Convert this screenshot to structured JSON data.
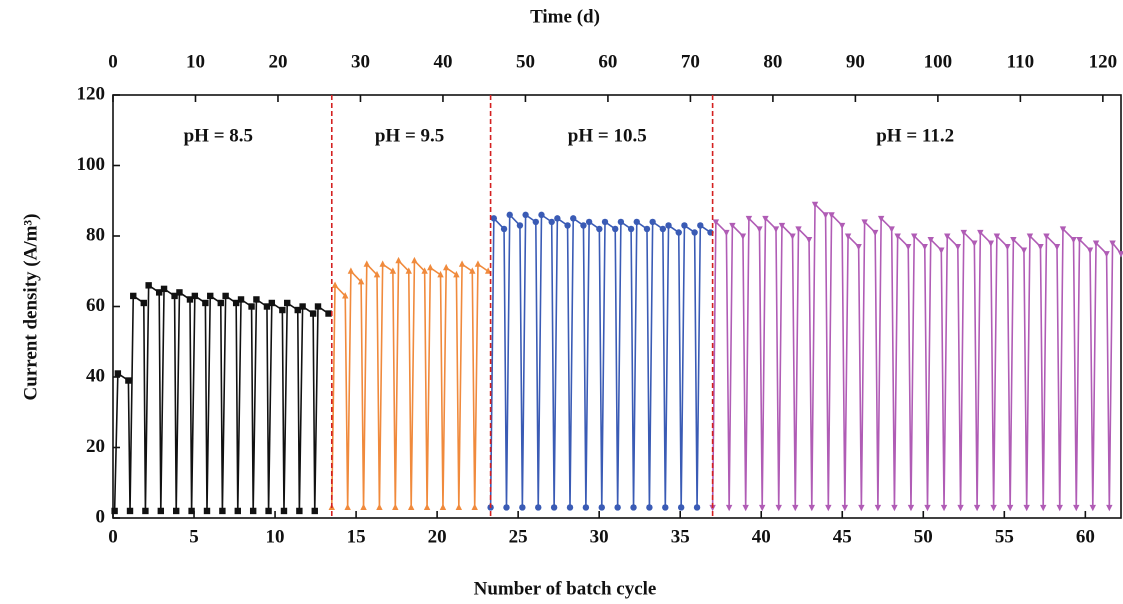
{
  "chart_data": {
    "type": "line",
    "x_label": "Number of batch cycle",
    "x2_label": "Time (d)",
    "y_label": "Current density (A/m³)",
    "xlim": [
      0,
      62.2
    ],
    "xticks": [
      0,
      5,
      10,
      15,
      20,
      25,
      30,
      35,
      40,
      45,
      50,
      55,
      60
    ],
    "x2lim": [
      0,
      122.2
    ],
    "x2ticks": [
      0,
      10,
      20,
      30,
      40,
      50,
      60,
      70,
      80,
      90,
      100,
      110,
      120
    ],
    "ylim": [
      0,
      120
    ],
    "yticks": [
      0,
      20,
      40,
      60,
      80,
      100,
      120
    ],
    "divider_color": "#d42020",
    "dividers": [
      13.5,
      23.3,
      37
    ],
    "annotations": [
      {
        "text": "pH = 8.5",
        "x": 6.5,
        "y": 108
      },
      {
        "text": "pH = 9.5",
        "x": 18.3,
        "y": 108
      },
      {
        "text": "pH = 10.5",
        "x": 30.5,
        "y": 108
      },
      {
        "text": "pH = 11.2",
        "x": 49.5,
        "y": 108
      }
    ],
    "series": [
      {
        "color": "#111111",
        "marker": "square",
        "x": [
          0.1,
          0.3,
          0.95,
          1.05,
          1.25,
          1.9,
          2.0,
          2.2,
          2.85,
          2.95,
          3.15,
          3.8,
          3.9,
          4.1,
          4.75,
          4.85,
          5.05,
          5.7,
          5.8,
          6.0,
          6.65,
          6.75,
          6.95,
          7.6,
          7.7,
          7.9,
          8.55,
          8.65,
          8.85,
          9.5,
          9.6,
          9.8,
          10.45,
          10.55,
          10.75,
          11.4,
          11.5,
          11.7,
          12.35,
          12.45,
          12.65,
          13.3
        ],
        "values": [
          2,
          41,
          39,
          2,
          63,
          61,
          2,
          66,
          64,
          2,
          65,
          63,
          2,
          64,
          62,
          2,
          63,
          61,
          2,
          63,
          61,
          2,
          63,
          61,
          2,
          62,
          60,
          2,
          62,
          60,
          2,
          61,
          59,
          2,
          61,
          59,
          2,
          60,
          58,
          2,
          60,
          58
        ]
      },
      {
        "color": "#f08a3c",
        "marker": "triangle",
        "x": [
          13.5,
          13.7,
          14.33,
          14.48,
          14.68,
          15.31,
          15.46,
          15.66,
          16.29,
          16.44,
          16.64,
          17.27,
          17.42,
          17.62,
          18.25,
          18.4,
          18.6,
          19.23,
          19.38,
          19.58,
          20.21,
          20.36,
          20.56,
          21.19,
          21.34,
          21.54,
          22.17,
          22.32,
          22.52,
          23.15
        ],
        "values": [
          3,
          66,
          63,
          3,
          70,
          67,
          3,
          72,
          69,
          3,
          72,
          70,
          3,
          73,
          70,
          3,
          73,
          70,
          3,
          71,
          69,
          3,
          71,
          69,
          3,
          72,
          70,
          3,
          72,
          70
        ]
      },
      {
        "color": "#3a5bb5",
        "marker": "circle",
        "x": [
          23.3,
          23.5,
          24.13,
          24.28,
          24.48,
          25.11,
          25.26,
          25.46,
          26.09,
          26.24,
          26.44,
          27.07,
          27.22,
          27.42,
          28.05,
          28.2,
          28.4,
          29.03,
          29.18,
          29.38,
          30.01,
          30.16,
          30.36,
          30.99,
          31.14,
          31.34,
          31.97,
          32.12,
          32.32,
          32.95,
          33.1,
          33.3,
          33.93,
          34.08,
          34.28,
          34.91,
          35.06,
          35.26,
          35.89,
          36.04,
          36.24,
          36.87
        ],
        "values": [
          3,
          85,
          82,
          3,
          86,
          83,
          3,
          86,
          84,
          3,
          86,
          84,
          3,
          85,
          83,
          3,
          85,
          83,
          3,
          84,
          82,
          3,
          84,
          82,
          3,
          84,
          82,
          3,
          84,
          82,
          3,
          84,
          82,
          3,
          83,
          81,
          3,
          83,
          81,
          3,
          83,
          81
        ]
      },
      {
        "color": "#b05cb5",
        "marker": "triangle-down",
        "x": [
          37,
          37.2,
          37.85,
          38.02,
          38.22,
          38.87,
          39.04,
          39.24,
          39.89,
          40.06,
          40.26,
          40.91,
          41.08,
          41.28,
          41.93,
          42.1,
          42.3,
          42.95,
          43.12,
          43.32,
          43.97,
          44.14,
          44.34,
          44.99,
          45.16,
          45.36,
          46.01,
          46.18,
          46.38,
          47.03,
          47.2,
          47.4,
          48.05,
          48.22,
          48.42,
          49.07,
          49.24,
          49.44,
          50.09,
          50.26,
          50.46,
          51.11,
          51.28,
          51.48,
          52.13,
          52.3,
          52.5,
          53.15,
          53.32,
          53.52,
          54.17,
          54.34,
          54.54,
          55.19,
          55.36,
          55.56,
          56.21,
          56.38,
          56.58,
          57.23,
          57.4,
          57.6,
          58.25,
          58.42,
          58.62,
          59.27,
          59.44,
          59.64,
          60.29,
          60.46,
          60.66,
          61.31,
          61.48,
          61.68,
          62.2
        ],
        "values": [
          3,
          84,
          81,
          3,
          83,
          80,
          3,
          85,
          82,
          3,
          85,
          82,
          3,
          83,
          80,
          3,
          82,
          79,
          3,
          89,
          86,
          3,
          86,
          83,
          3,
          80,
          77,
          3,
          84,
          81,
          3,
          85,
          82,
          3,
          80,
          77,
          3,
          80,
          77,
          3,
          79,
          76,
          3,
          80,
          77,
          3,
          81,
          78,
          3,
          81,
          78,
          3,
          80,
          77,
          3,
          79,
          76,
          3,
          80,
          77,
          3,
          80,
          77,
          3,
          82,
          79,
          3,
          79,
          76,
          3,
          78,
          75,
          3,
          78,
          75
        ]
      }
    ]
  }
}
